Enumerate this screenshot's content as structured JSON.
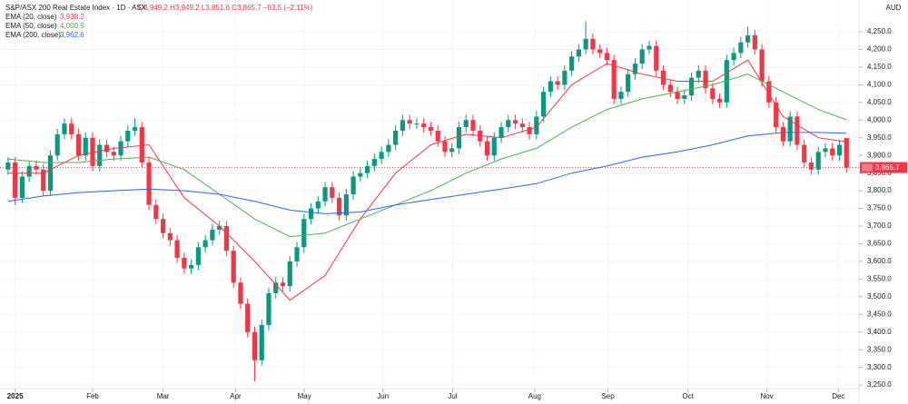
{
  "chart_data": {
    "type": "candlestick",
    "title": "S&P/ASX 200 Real Estate Index · 1D · ASX",
    "ohlc": "O3,949.2 H3,949.2 L3,851.6 C3,865.7 −83.5 (−2.11%)",
    "currency": "AUD",
    "last_label": "3,865.7",
    "up_color": "#089981",
    "down_color": "#f23645",
    "xlim": [
      0,
      241
    ],
    "xticks": [
      {
        "value": 3,
        "label": "2025"
      },
      {
        "value": 25,
        "label": "Feb"
      },
      {
        "value": 45,
        "label": "Mar"
      },
      {
        "value": 65.6,
        "label": "Apr"
      },
      {
        "value": 85.1,
        "label": "May"
      },
      {
        "value": 107.4,
        "label": "Jun"
      },
      {
        "value": 127.2,
        "label": "Jul"
      },
      {
        "value": 150.5,
        "label": "Aug"
      },
      {
        "value": 171.3,
        "label": "Sep"
      },
      {
        "value": 194,
        "label": "Oct"
      },
      {
        "value": 216.4,
        "label": "Nov"
      },
      {
        "value": 236.7,
        "label": "Dec"
      }
    ],
    "ylim": [
      3240,
      4340
    ],
    "yticks": [
      {
        "value": 3250,
        "label": "3,250.0"
      },
      {
        "value": 3300,
        "label": "3,300.0"
      },
      {
        "value": 3350,
        "label": "3,350.0"
      },
      {
        "value": 3400,
        "label": "3,400.0"
      },
      {
        "value": 3450,
        "label": "3,450.0"
      },
      {
        "value": 3500,
        "label": "3,500.0"
      },
      {
        "value": 3550,
        "label": "3,550.0"
      },
      {
        "value": 3600,
        "label": "3,600.0"
      },
      {
        "value": 3650,
        "label": "3,650.0"
      },
      {
        "value": 3700,
        "label": "3,700.0"
      },
      {
        "value": 3750,
        "label": "3,750.0"
      },
      {
        "value": 3800,
        "label": "3,800.0"
      },
      {
        "value": 3850,
        "label": "3,850.0"
      },
      {
        "value": 3900,
        "label": "3,900.0"
      },
      {
        "value": 3950,
        "label": "3,950.0"
      },
      {
        "value": 4000,
        "label": "4,000.0"
      },
      {
        "value": 4050,
        "label": "4,050.0"
      },
      {
        "value": 4100,
        "label": "4,100.0"
      },
      {
        "value": 4150,
        "label": "4,150.0"
      },
      {
        "value": 4200,
        "label": "4,200.0"
      },
      {
        "value": 4250,
        "label": "4,250.0"
      }
    ],
    "x": [
      1,
      3,
      5,
      7,
      9,
      11,
      13,
      15,
      17,
      19,
      21,
      23,
      25,
      27,
      29,
      31,
      33,
      35,
      37,
      39,
      41,
      43,
      45,
      47,
      49,
      51,
      53,
      55,
      57,
      59,
      61,
      63,
      65,
      67,
      69,
      71,
      73,
      75,
      77,
      79,
      81,
      83,
      85,
      87,
      89,
      91,
      93,
      95,
      97,
      99,
      101,
      103,
      105,
      107,
      109,
      111,
      113,
      115,
      117,
      119,
      121,
      123,
      125,
      127,
      129,
      131,
      133,
      135,
      137,
      139,
      141,
      143,
      145,
      147,
      149,
      151,
      153,
      155,
      157,
      159,
      161,
      163,
      165,
      167,
      169,
      171,
      173,
      175,
      177,
      179,
      181,
      183,
      185,
      187,
      189,
      191,
      193,
      195,
      197,
      199,
      201,
      203,
      205,
      207,
      209,
      211,
      213,
      215,
      217,
      219,
      221,
      223,
      225,
      227,
      229,
      231,
      233,
      235,
      237,
      239
    ],
    "open": [
      3860,
      3880,
      3780,
      3840,
      3870,
      3860,
      3800,
      3900,
      3960,
      3990,
      3960,
      3900,
      3950,
      3870,
      3930,
      3910,
      3900,
      3940,
      3970,
      3980,
      3880,
      3760,
      3720,
      3680,
      3660,
      3610,
      3580,
      3590,
      3640,
      3660,
      3690,
      3700,
      3630,
      3540,
      3480,
      3400,
      3320,
      3420,
      3510,
      3540,
      3530,
      3600,
      3640,
      3720,
      3750,
      3770,
      3810,
      3780,
      3730,
      3790,
      3840,
      3850,
      3870,
      3890,
      3910,
      3930,
      3970,
      4000,
      3990,
      3990,
      3980,
      3970,
      3940,
      3910,
      3920,
      3980,
      4000,
      3970,
      3940,
      3900,
      3950,
      3980,
      4000,
      3990,
      3980,
      3960,
      4010,
      4080,
      4110,
      4100,
      4140,
      4180,
      4200,
      4230,
      4200,
      4190,
      4170,
      4060,
      4080,
      4130,
      4160,
      4200,
      4210,
      4140,
      4100,
      4080,
      4060,
      4070,
      4120,
      4140,
      4090,
      4060,
      4050,
      4170,
      4190,
      4220,
      4240,
      4200,
      4110,
      4050,
      3980,
      3940,
      4010,
      3930,
      3880,
      3860,
      3910,
      3920,
      3900,
      3949.2
    ],
    "high": [
      3895,
      3895,
      3855,
      3885,
      3885,
      3875,
      3915,
      3975,
      4005,
      4005,
      3975,
      3965,
      3965,
      3945,
      3945,
      3925,
      3955,
      3985,
      4005,
      3995,
      3895,
      3775,
      3735,
      3695,
      3675,
      3625,
      3605,
      3655,
      3675,
      3705,
      3715,
      3715,
      3645,
      3555,
      3495,
      3415,
      3435,
      3525,
      3555,
      3555,
      3615,
      3655,
      3735,
      3765,
      3785,
      3825,
      3825,
      3795,
      3805,
      3855,
      3865,
      3885,
      3905,
      3925,
      3945,
      3985,
      4015,
      4015,
      4005,
      4005,
      3995,
      3985,
      3955,
      3935,
      3995,
      4015,
      4015,
      3985,
      3955,
      3965,
      3995,
      4015,
      4015,
      4005,
      3995,
      4025,
      4095,
      4125,
      4125,
      4155,
      4195,
      4215,
      4280,
      4245,
      4215,
      4205,
      4185,
      4095,
      4145,
      4175,
      4215,
      4225,
      4225,
      4155,
      4115,
      4095,
      4085,
      4135,
      4155,
      4155,
      4105,
      4075,
      4185,
      4205,
      4235,
      4265,
      4255,
      4215,
      4125,
      4065,
      3995,
      4025,
      4025,
      3945,
      3895,
      3925,
      3935,
      3935,
      3945,
      3949.2
    ],
    "low": [
      3845,
      3760,
      3765,
      3825,
      3845,
      3785,
      3785,
      3885,
      3945,
      3945,
      3885,
      3885,
      3855,
      3855,
      3895,
      3885,
      3885,
      3925,
      3955,
      3865,
      3745,
      3705,
      3665,
      3645,
      3595,
      3565,
      3565,
      3575,
      3625,
      3645,
      3675,
      3615,
      3525,
      3465,
      3385,
      3260,
      3305,
      3405,
      3495,
      3515,
      3515,
      3585,
      3625,
      3705,
      3735,
      3755,
      3765,
      3715,
      3715,
      3775,
      3825,
      3835,
      3855,
      3875,
      3895,
      3915,
      3955,
      3975,
      3975,
      3965,
      3955,
      3925,
      3895,
      3895,
      3905,
      3965,
      3955,
      3925,
      3885,
      3885,
      3935,
      3965,
      3975,
      3965,
      3945,
      3945,
      3995,
      4065,
      4085,
      4085,
      4125,
      4165,
      4185,
      4185,
      4175,
      4155,
      4045,
      4045,
      4065,
      4115,
      4145,
      4185,
      4125,
      4085,
      4065,
      4045,
      4045,
      4055,
      4105,
      4075,
      4045,
      4035,
      4035,
      4155,
      4175,
      4205,
      4185,
      4095,
      4035,
      3965,
      3925,
      3925,
      3915,
      3865,
      3845,
      3845,
      3895,
      3885,
      3885,
      3851.6
    ],
    "close": [
      3880,
      3780,
      3840,
      3870,
      3860,
      3800,
      3900,
      3960,
      3990,
      3960,
      3900,
      3950,
      3870,
      3930,
      3910,
      3900,
      3940,
      3970,
      3980,
      3880,
      3760,
      3720,
      3680,
      3660,
      3610,
      3580,
      3590,
      3640,
      3660,
      3690,
      3700,
      3630,
      3540,
      3480,
      3400,
      3320,
      3420,
      3510,
      3540,
      3530,
      3600,
      3640,
      3720,
      3750,
      3770,
      3810,
      3780,
      3730,
      3790,
      3840,
      3850,
      3870,
      3890,
      3910,
      3930,
      3970,
      4000,
      3990,
      3990,
      3980,
      3970,
      3940,
      3910,
      3920,
      3980,
      4000,
      3970,
      3940,
      3900,
      3950,
      3980,
      4000,
      3990,
      3980,
      3960,
      4010,
      4080,
      4110,
      4100,
      4140,
      4180,
      4200,
      4230,
      4200,
      4190,
      4170,
      4060,
      4080,
      4130,
      4160,
      4200,
      4210,
      4140,
      4100,
      4080,
      4060,
      4070,
      4120,
      4140,
      4090,
      4060,
      4050,
      4170,
      4190,
      4220,
      4240,
      4200,
      4110,
      4050,
      3980,
      3940,
      4010,
      3930,
      3880,
      3860,
      3910,
      3920,
      3900,
      3930,
      3865.7
    ],
    "ema_x": [
      1,
      11,
      21,
      31,
      41,
      51,
      61,
      71,
      81,
      91,
      101,
      111,
      121,
      131,
      141,
      151,
      161,
      171,
      181,
      191,
      201,
      211,
      221,
      231,
      239
    ],
    "ema": [
      {
        "name": "EMA (20, close)",
        "last_label": "3,938.2",
        "color": "#f23645",
        "values": [
          3850,
          3850,
          3900,
          3920,
          3930,
          3780,
          3700,
          3600,
          3490,
          3560,
          3720,
          3850,
          3930,
          3960,
          3950,
          3980,
          4100,
          4160,
          4130,
          4110,
          4110,
          4170,
          4010,
          3950,
          3938.2
        ]
      },
      {
        "name": "EMA (50, close)",
        "last_label": "4,000.9",
        "color": "#4caf50",
        "values": [
          3890,
          3880,
          3880,
          3890,
          3895,
          3860,
          3790,
          3720,
          3670,
          3680,
          3720,
          3760,
          3800,
          3850,
          3890,
          3920,
          3980,
          4030,
          4060,
          4080,
          4100,
          4130,
          4080,
          4030,
          4000.9
        ]
      },
      {
        "name": "EMA (200, close)",
        "last_label": "3,962.6",
        "color": "#2962ff",
        "values": [
          3770,
          3785,
          3795,
          3800,
          3805,
          3800,
          3790,
          3770,
          3745,
          3735,
          3740,
          3760,
          3775,
          3790,
          3805,
          3820,
          3850,
          3870,
          3895,
          3910,
          3930,
          3955,
          3965,
          3965,
          3962.6
        ]
      }
    ]
  }
}
